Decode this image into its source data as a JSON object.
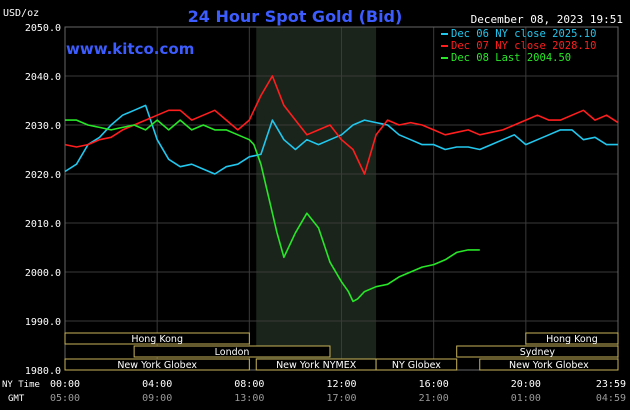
{
  "header": {
    "title": "24 Hour Spot Gold (Bid)",
    "unit": "USD/oz",
    "timestamp": "December 08, 2023 19:51",
    "watermark": "www.kitco.com"
  },
  "axes": {
    "ny_time_label": "NY Time",
    "gmt_label": "GMT",
    "ny_ticks": [
      "00:00",
      "04:00",
      "08:00",
      "12:00",
      "16:00",
      "20:00",
      "23:59"
    ],
    "gmt_ticks": [
      "05:00",
      "09:00",
      "13:00",
      "17:00",
      "21:00",
      "01:00",
      "04:59"
    ]
  },
  "markets": [
    {
      "name": "Hong Kong",
      "start": 0,
      "end": 8,
      "row": 0
    },
    {
      "name": "Hong Kong",
      "start": 20,
      "end": 24,
      "row": 0
    },
    {
      "name": "London",
      "start": 3,
      "end": 11.5,
      "row": 1
    },
    {
      "name": "Sydney",
      "start": 17,
      "end": 24,
      "row": 1
    },
    {
      "name": "New York Globex",
      "start": 0,
      "end": 8,
      "row": 2
    },
    {
      "name": "New York NYMEX",
      "start": 8.3,
      "end": 13.5,
      "row": 2
    },
    {
      "name": "NY Globex",
      "start": 13.5,
      "end": 17,
      "row": 2
    },
    {
      "name": "New York Globex",
      "start": 18,
      "end": 24,
      "row": 2
    }
  ],
  "colors": {
    "dec06": "#22c7ee",
    "dec07": "#ff1e1e",
    "dec08": "#28e628",
    "title": "#3c5cff",
    "text": "#ffffff",
    "market_border": "#c8b45a",
    "nymex_shade": "#1a241a"
  },
  "chart_data": {
    "type": "line",
    "xlim": [
      0,
      24
    ],
    "ylim": [
      1980,
      2050
    ],
    "ylabel": "USD/oz",
    "xlabel": "",
    "grid": true,
    "legend_position": "top-right",
    "y_ticks": [
      "2050.0",
      "2040.0",
      "2030.0",
      "2020.0",
      "2010.0",
      "2000.0",
      "1990.0",
      "1980.0"
    ],
    "series": [
      {
        "name": "Dec 06 NY close 2025.10",
        "color": "#22c7ee",
        "x": [
          0,
          0.5,
          1,
          1.5,
          2,
          2.5,
          3,
          3.5,
          4,
          4.5,
          5,
          5.5,
          6,
          6.5,
          7,
          7.5,
          8,
          8.5,
          9,
          9.5,
          10,
          10.5,
          11,
          11.5,
          12,
          12.5,
          13,
          13.5,
          14,
          14.5,
          15,
          15.5,
          16,
          16.5,
          17,
          17.5,
          18,
          18.5,
          19,
          19.5,
          20,
          20.5,
          21,
          21.5,
          22,
          22.5,
          23,
          23.5,
          24
        ],
        "y": [
          2020.5,
          2022,
          2026,
          2027.5,
          2030,
          2032,
          2033,
          2034,
          2027,
          2023,
          2021.5,
          2022,
          2021,
          2020,
          2021.5,
          2022,
          2023.5,
          2024,
          2031,
          2027,
          2025,
          2027,
          2026,
          2027,
          2028,
          2030,
          2031,
          2030.5,
          2030,
          2028,
          2027,
          2026,
          2026,
          2025,
          2025.5,
          2025.5,
          2025,
          2026,
          2027,
          2028,
          2026,
          2027,
          2028,
          2029,
          2029,
          2027,
          2027.5,
          2026,
          2026
        ]
      },
      {
        "name": "Dec 07 NY close 2028.10",
        "color": "#ff1e1e",
        "x": [
          0,
          0.5,
          1,
          1.5,
          2,
          2.5,
          3,
          3.5,
          4,
          4.5,
          5,
          5.5,
          6,
          6.5,
          7,
          7.5,
          8,
          8.5,
          9,
          9.5,
          10,
          10.5,
          11,
          11.5,
          12,
          12.5,
          13,
          13.5,
          14,
          14.5,
          15,
          15.5,
          16,
          16.5,
          17,
          17.5,
          18,
          18.5,
          19,
          19.5,
          20,
          20.5,
          21,
          21.5,
          22,
          22.5,
          23,
          23.5,
          24
        ],
        "y": [
          2026,
          2025.5,
          2026,
          2027,
          2027.5,
          2029,
          2030,
          2031,
          2032,
          2033,
          2033,
          2031,
          2032,
          2033,
          2031,
          2029,
          2031,
          2036,
          2040,
          2034,
          2031,
          2028,
          2029,
          2030,
          2027,
          2025,
          2020,
          2028,
          2031,
          2030,
          2030.5,
          2030,
          2029,
          2028,
          2028.5,
          2029,
          2028,
          2028.5,
          2029,
          2030,
          2031,
          2032,
          2031,
          2031,
          2032,
          2033,
          2031,
          2032,
          2030.5
        ]
      },
      {
        "name": "Dec 08 Last 2004.50",
        "color": "#28e628",
        "x": [
          0,
          0.5,
          1,
          1.5,
          2,
          2.5,
          3,
          3.5,
          4,
          4.5,
          5,
          5.5,
          6,
          6.5,
          7,
          7.5,
          8,
          8.2,
          8.5,
          8.8,
          9,
          9.2,
          9.5,
          9.8,
          10,
          10.5,
          11,
          11.5,
          12,
          12.3,
          12.5,
          12.7,
          13,
          13.5,
          14,
          14.5,
          15,
          15.5,
          16,
          16.5,
          17,
          17.5,
          18
        ],
        "y": [
          2031,
          2031,
          2030,
          2029.5,
          2029,
          2029.5,
          2030,
          2029,
          2031,
          2029,
          2031,
          2029,
          2030,
          2029,
          2029,
          2028,
          2027,
          2026,
          2022,
          2016,
          2012,
          2008,
          2003,
          2006,
          2008,
          2012,
          2009,
          2002,
          1998,
          1996,
          1994,
          1994.5,
          1996,
          1997,
          1997.5,
          1999,
          2000,
          2001,
          2001.5,
          2002.5,
          2004,
          2004.5,
          2004.5
        ]
      }
    ]
  }
}
